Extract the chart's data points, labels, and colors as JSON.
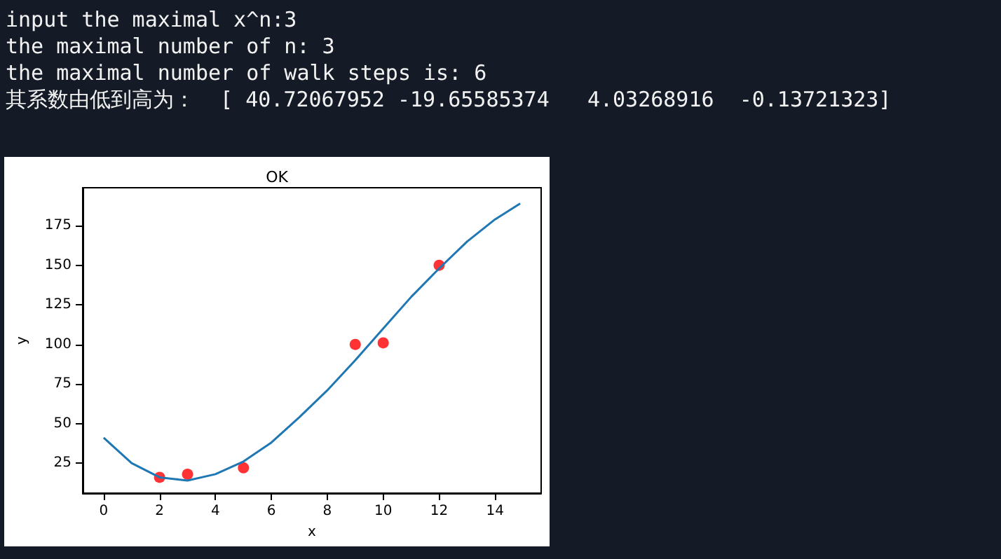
{
  "chart_data": {
    "type": "scatter",
    "title": "OK",
    "xlabel": "x",
    "ylabel": "y",
    "annotations": [
      "input the maximal x^n:3",
      "the maximal number of n: 3",
      "the maximal number of walk steps is: 6",
      "其系数由低到高为：  [ 40.72067952 -19.65585374   4.03268916  -0.13721323]"
    ],
    "xlim": [
      -0.75,
      15.65
    ],
    "ylim": [
      6,
      199
    ],
    "xticks": [
      0,
      2,
      4,
      6,
      8,
      10,
      12,
      14
    ],
    "yticks": [
      25,
      50,
      75,
      100,
      125,
      150,
      175
    ],
    "grid": false,
    "series": [
      {
        "type": "line",
        "color": "#1f77b4",
        "marker": "none",
        "x": [
          0,
          1,
          2,
          2.5,
          3,
          4,
          5,
          6,
          7,
          8,
          9,
          10,
          11,
          12,
          13,
          14,
          14.9
        ],
        "values": [
          41,
          25,
          16,
          15,
          14,
          18,
          26,
          38,
          54,
          71,
          90,
          110,
          130,
          148,
          165,
          179,
          189
        ]
      },
      {
        "color": "#ff0000",
        "marker": "circle",
        "x": [
          2,
          3,
          5,
          9,
          10,
          12
        ],
        "values": [
          16,
          18,
          22,
          100,
          101,
          150
        ]
      }
    ]
  }
}
